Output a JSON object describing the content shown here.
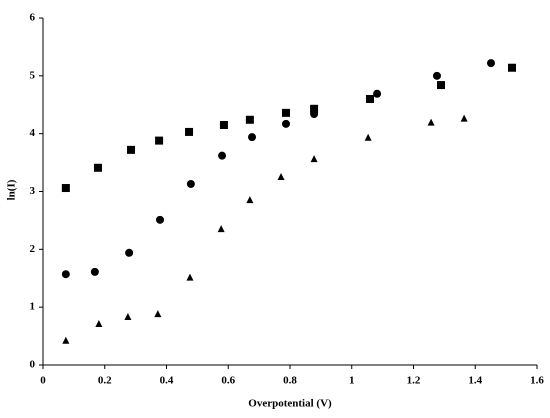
{
  "chart_data": {
    "type": "scatter",
    "x_label": "Overpotential (V)",
    "y_label": "ln(I)",
    "xlim": [
      0,
      1.6
    ],
    "xticks": [
      0,
      0.2,
      0.4,
      0.6,
      0.8,
      1,
      1.2,
      1.4,
      1.6
    ],
    "ylim": [
      0,
      6
    ],
    "yticks": [
      0,
      1,
      2,
      3,
      4,
      5,
      6
    ],
    "grid": false,
    "series": [
      {
        "marker": "square",
        "color": "#000000",
        "x": [
          0.074,
          0.178,
          0.285,
          0.376,
          0.473,
          0.586,
          0.67,
          0.787,
          0.878,
          1.059,
          1.289,
          1.519
        ],
        "values": [
          3.06,
          3.41,
          3.72,
          3.88,
          4.03,
          4.15,
          4.24,
          4.36,
          4.43,
          4.6,
          4.84,
          5.14
        ]
      },
      {
        "marker": "circle",
        "color": "#000000",
        "x": [
          0.074,
          0.168,
          0.279,
          0.379,
          0.479,
          0.58,
          0.677,
          0.787,
          0.878,
          1.082,
          1.276,
          1.451
        ],
        "values": [
          1.57,
          1.61,
          1.94,
          2.51,
          3.13,
          3.62,
          3.94,
          4.17,
          4.34,
          4.69,
          5.0,
          5.22
        ]
      },
      {
        "marker": "triangle",
        "color": "#000000",
        "x": [
          0.074,
          0.181,
          0.275,
          0.372,
          0.476,
          0.577,
          0.67,
          0.771,
          0.878,
          1.053,
          1.257,
          1.364
        ],
        "values": [
          0.42,
          0.71,
          0.83,
          0.88,
          1.51,
          2.35,
          2.85,
          3.25,
          3.56,
          3.93,
          4.19,
          4.26
        ]
      }
    ]
  }
}
